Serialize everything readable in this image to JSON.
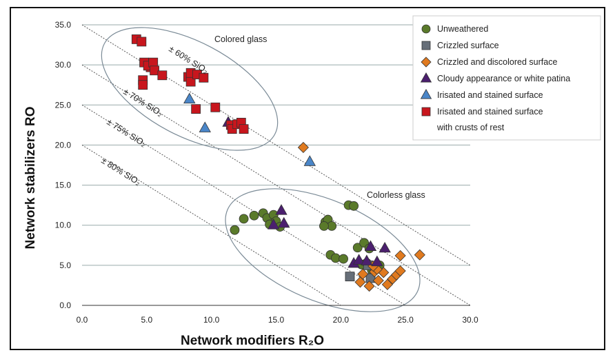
{
  "chart_data": {
    "type": "scatter",
    "xlabel": "Network modifiers R₂O",
    "ylabel": "Network stabilizers RO",
    "xlim": [
      0,
      30
    ],
    "ylim": [
      0,
      35
    ],
    "x_ticks": [
      "0.0",
      "5.0",
      "10.0",
      "15.0",
      "20.0",
      "25.0",
      "30.0"
    ],
    "y_ticks": [
      "0.0",
      "5.0",
      "10.0",
      "15.0",
      "20.0",
      "25.0",
      "30.0",
      "35.0"
    ],
    "grid": "horizontal",
    "legend_position": "top-right",
    "annotations": {
      "colored_glass": "Colored glass",
      "colorless_glass": "Colorless glass",
      "iso60": "± 60% SiO₂",
      "iso70": "± 70% SiO₂",
      "iso75": "± 75% SiO₂",
      "iso80": "± 80% SiO₂"
    },
    "iso_lines": [
      {
        "label_key": "iso60",
        "sum": 35
      },
      {
        "label_key": "iso70",
        "sum": 30
      },
      {
        "label_key": "iso75",
        "sum": 25
      },
      {
        "label_key": "iso80",
        "sum": 20
      }
    ],
    "series": [
      {
        "name": "Unweathered",
        "marker": "circle",
        "color": "#5a7a2a",
        "points": [
          [
            11.8,
            9.4
          ],
          [
            12.5,
            10.8
          ],
          [
            13.3,
            11.2
          ],
          [
            14.0,
            11.5
          ],
          [
            14.3,
            10.9
          ],
          [
            14.8,
            11.3
          ],
          [
            14.5,
            10.1
          ],
          [
            15.0,
            10.5
          ],
          [
            15.3,
            9.8
          ],
          [
            18.8,
            10.4
          ],
          [
            19.0,
            10.7
          ],
          [
            19.3,
            9.9
          ],
          [
            18.7,
            9.9
          ],
          [
            20.6,
            12.5
          ],
          [
            21.0,
            12.4
          ],
          [
            19.2,
            6.3
          ],
          [
            19.6,
            5.9
          ],
          [
            20.2,
            5.8
          ],
          [
            21.3,
            7.2
          ],
          [
            21.8,
            7.8
          ],
          [
            22.2,
            7.1
          ],
          [
            21.6,
            5.1
          ],
          [
            22.0,
            5.3
          ],
          [
            22.6,
            4.8
          ],
          [
            23.0,
            5.0
          ],
          [
            22.4,
            4.4
          ]
        ]
      },
      {
        "name": "Crizzled surface",
        "marker": "square",
        "color": "#666e78",
        "points": [
          [
            20.7,
            3.6
          ],
          [
            22.3,
            3.4
          ],
          [
            22.1,
            5.0
          ]
        ]
      },
      {
        "name": "Crizzled and discolored surface",
        "marker": "diamond",
        "color": "#e07a1f",
        "points": [
          [
            17.1,
            19.7
          ],
          [
            21.5,
            2.9
          ],
          [
            21.7,
            3.9
          ],
          [
            22.2,
            2.4
          ],
          [
            22.6,
            4.2
          ],
          [
            22.9,
            3.1
          ],
          [
            23.3,
            4.1
          ],
          [
            23.6,
            2.6
          ],
          [
            24.0,
            3.3
          ],
          [
            24.3,
            3.8
          ],
          [
            24.6,
            4.3
          ],
          [
            22.8,
            4.5
          ],
          [
            24.6,
            6.2
          ],
          [
            26.1,
            6.3
          ],
          [
            22.5,
            4.9
          ]
        ]
      },
      {
        "name": "Cloudy appearance or white patina",
        "marker": "triangle",
        "color": "#4b1f6e",
        "points": [
          [
            11.3,
            22.8
          ],
          [
            14.8,
            10.0
          ],
          [
            15.4,
            11.8
          ],
          [
            15.6,
            10.2
          ],
          [
            21.0,
            5.2
          ],
          [
            21.4,
            5.6
          ],
          [
            22.3,
            7.3
          ],
          [
            23.4,
            7.1
          ],
          [
            22.8,
            5.4
          ],
          [
            22.0,
            5.5
          ]
        ]
      },
      {
        "name": "Irisated and stained surface",
        "marker": "triangle",
        "color": "#4a86c8",
        "points": [
          [
            8.3,
            25.7
          ],
          [
            9.5,
            22.1
          ],
          [
            17.6,
            17.9
          ]
        ]
      },
      {
        "name": "Irisated and stained surface with crusts of rest",
        "legend_lines": [
          "Irisated and stained surface",
          "with crusts of rest"
        ],
        "marker": "square",
        "color": "#c8161d",
        "points": [
          [
            4.2,
            33.2
          ],
          [
            4.6,
            32.9
          ],
          [
            4.8,
            30.3
          ],
          [
            5.3,
            29.7
          ],
          [
            5.1,
            29.9
          ],
          [
            5.5,
            30.3
          ],
          [
            5.6,
            29.3
          ],
          [
            4.7,
            28.1
          ],
          [
            4.7,
            27.5
          ],
          [
            6.2,
            28.7
          ],
          [
            8.2,
            28.5
          ],
          [
            8.4,
            27.9
          ],
          [
            8.4,
            29.0
          ],
          [
            8.9,
            28.8
          ],
          [
            9.4,
            28.4
          ],
          [
            8.8,
            24.5
          ],
          [
            10.3,
            24.7
          ],
          [
            11.5,
            22.5
          ],
          [
            11.6,
            22.0
          ],
          [
            12.0,
            22.6
          ],
          [
            12.3,
            22.8
          ],
          [
            12.5,
            22.0
          ]
        ]
      }
    ],
    "legend_entries": [
      {
        "line1": "Unweathered",
        "line2": ""
      },
      {
        "line1": "Crizzled surface",
        "line2": ""
      },
      {
        "line1": "Crizzled and discolored surface",
        "line2": ""
      },
      {
        "line1": "Cloudy appearance or white patina",
        "line2": ""
      },
      {
        "line1": "Irisated and stained surface",
        "line2": ""
      },
      {
        "line1": "Irisated and stained surface",
        "line2": "with crusts of rest"
      }
    ]
  }
}
